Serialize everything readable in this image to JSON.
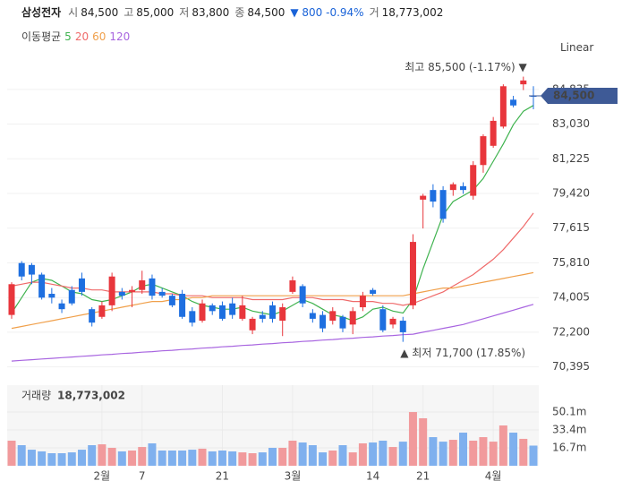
{
  "quote": {
    "name": "삼성전자",
    "fields": [
      {
        "label": "시",
        "value": "84,500"
      },
      {
        "label": "고",
        "value": "85,000"
      },
      {
        "label": "저",
        "value": "83,800"
      },
      {
        "label": "종",
        "value": "84,500"
      }
    ],
    "change": "▼ 800 -0.94%",
    "volume_label": "거",
    "volume": "18,773,002"
  },
  "chart_data": [
    {
      "type": "candlestick",
      "scale": "Linear",
      "legend_title": "이동평균",
      "categories": [
        null,
        null,
        null,
        null,
        null,
        null,
        null,
        null,
        null,
        "2월",
        null,
        null,
        null,
        "7",
        null,
        null,
        null,
        null,
        null,
        null,
        null,
        "21",
        null,
        null,
        null,
        null,
        null,
        null,
        "3월",
        null,
        null,
        null,
        null,
        null,
        null,
        null,
        "14",
        null,
        null,
        null,
        null,
        "21",
        null,
        null,
        null,
        null,
        null,
        null,
        "4월",
        null,
        null,
        null,
        null
      ],
      "open": [
        73100,
        75800,
        75700,
        75200,
        74200,
        73700,
        74400,
        75000,
        73400,
        73000,
        73600,
        74300,
        74300,
        74400,
        75000,
        74300,
        74100,
        74200,
        73300,
        72800,
        73600,
        73600,
        73700,
        72900,
        72300,
        73100,
        73600,
        72800,
        74300,
        74600,
        73200,
        73100,
        72800,
        73000,
        72600,
        73500,
        74400,
        73400,
        72600,
        72800,
        73600,
        79100,
        79600,
        79600,
        79600,
        79800,
        79300,
        80900,
        81900,
        82900,
        84300,
        85100,
        84500
      ],
      "high": [
        74800,
        75900,
        75800,
        75300,
        74500,
        73900,
        74600,
        75300,
        73500,
        73800,
        75300,
        74500,
        74600,
        75400,
        75200,
        74500,
        74200,
        74400,
        73500,
        73900,
        73700,
        73800,
        74000,
        74100,
        73000,
        73300,
        73800,
        73700,
        75100,
        74700,
        73400,
        73300,
        73500,
        73100,
        73500,
        74300,
        74500,
        73600,
        73000,
        73000,
        77300,
        79400,
        79900,
        79800,
        80000,
        80000,
        81100,
        82500,
        83400,
        85100,
        84500,
        85500,
        85000
      ],
      "low": [
        72900,
        74900,
        74700,
        73900,
        73700,
        73200,
        73600,
        74100,
        72500,
        72900,
        73300,
        73900,
        73500,
        74200,
        73900,
        74000,
        73500,
        72900,
        72500,
        72700,
        73100,
        72800,
        72900,
        72800,
        72100,
        72700,
        72700,
        72000,
        74200,
        73500,
        72700,
        72200,
        72600,
        72200,
        72100,
        73300,
        74100,
        72200,
        72400,
        71700,
        73400,
        77600,
        78700,
        77900,
        79300,
        79400,
        79100,
        80500,
        81800,
        82800,
        83900,
        84800,
        83800
      ],
      "close": [
        74700,
        75100,
        75200,
        74000,
        74000,
        73400,
        73700,
        74300,
        72700,
        73600,
        75100,
        74100,
        74400,
        74900,
        74100,
        74100,
        73600,
        73000,
        72700,
        73700,
        73300,
        72900,
        73100,
        73600,
        72900,
        72900,
        72900,
        73500,
        74900,
        73700,
        72900,
        72400,
        73300,
        72400,
        73300,
        74100,
        74200,
        72300,
        72900,
        72200,
        76900,
        79300,
        79000,
        78100,
        79900,
        79600,
        80900,
        82400,
        83200,
        85000,
        84000,
        85300,
        84500
      ],
      "up_color": "#e8363c",
      "down_color": "#1e6fe0",
      "moving_averages": [
        {
          "name": "5",
          "color": "#3fb34f",
          "values": [
            73200,
            74000,
            74800,
            75000,
            74900,
            74600,
            74300,
            74200,
            73900,
            73800,
            73900,
            74100,
            74300,
            74600,
            74700,
            74500,
            74300,
            74100,
            73800,
            73600,
            73500,
            73400,
            73400,
            73500,
            73300,
            73200,
            73100,
            73300,
            73600,
            73900,
            73700,
            73400,
            73100,
            73000,
            72800,
            73000,
            73400,
            73500,
            73300,
            73200,
            73900,
            75500,
            76900,
            78300,
            79000,
            79300,
            79600,
            80200,
            81100,
            82000,
            83000,
            83700,
            84000
          ]
        },
        {
          "name": "20",
          "color": "#ef6a6a",
          "values": [
            74600,
            74700,
            74800,
            74800,
            74700,
            74600,
            74500,
            74500,
            74400,
            74400,
            74300,
            74300,
            74300,
            74300,
            74300,
            74200,
            74200,
            74100,
            74100,
            74100,
            74000,
            74000,
            74000,
            74000,
            73900,
            73900,
            73900,
            73900,
            74000,
            74000,
            74000,
            73900,
            73900,
            73900,
            73800,
            73800,
            73800,
            73700,
            73700,
            73600,
            73700,
            73900,
            74100,
            74300,
            74600,
            74900,
            75200,
            75600,
            76000,
            76500,
            77100,
            77700,
            78400
          ]
        },
        {
          "name": "60",
          "color": "#f0a04b",
          "values": [
            72400,
            72500,
            72600,
            72700,
            72800,
            72900,
            73000,
            73100,
            73200,
            73300,
            73400,
            73500,
            73600,
            73700,
            73800,
            73800,
            73900,
            73900,
            74000,
            74000,
            74100,
            74100,
            74100,
            74100,
            74100,
            74100,
            74100,
            74100,
            74100,
            74100,
            74100,
            74100,
            74100,
            74100,
            74100,
            74100,
            74100,
            74100,
            74100,
            74100,
            74200,
            74300,
            74400,
            74500,
            74500,
            74600,
            74700,
            74800,
            74900,
            75000,
            75100,
            75200,
            75300
          ]
        },
        {
          "name": "120",
          "color": "#a865e0",
          "values": [
            70700,
            70740,
            70770,
            70810,
            70840,
            70880,
            70910,
            70950,
            70980,
            71020,
            71050,
            71090,
            71120,
            71160,
            71190,
            71230,
            71260,
            71300,
            71330,
            71370,
            71400,
            71440,
            71470,
            71510,
            71540,
            71580,
            71610,
            71650,
            71680,
            71720,
            71750,
            71790,
            71820,
            71860,
            71890,
            71930,
            71960,
            72000,
            72030,
            72070,
            72100,
            72200,
            72300,
            72400,
            72500,
            72600,
            72750,
            72900,
            73050,
            73200,
            73350,
            73500,
            73650
          ]
        }
      ],
      "ylim": [
        69680,
        87530
      ],
      "yticks": [
        {
          "value": 70395,
          "label": "70,395"
        },
        {
          "value": 72200,
          "label": "72,200"
        },
        {
          "value": 74005,
          "label": "74,005"
        },
        {
          "value": 75810,
          "label": "75,810"
        },
        {
          "value": 77615,
          "label": "77,615"
        },
        {
          "value": 79420,
          "label": "79,420"
        },
        {
          "value": 81225,
          "label": "81,225"
        },
        {
          "value": 83030,
          "label": "83,030"
        },
        {
          "value": 84835,
          "label": "84,835"
        }
      ],
      "grid": true,
      "last_price": {
        "value": 84500,
        "label": "84,500"
      },
      "max_annotation": "최고 85,500 (-1.17%) ▼",
      "min_annotation": "▲ 최저 71,700 (17.85%)"
    },
    {
      "type": "bar",
      "title": "거래량",
      "subtitle": "18,773,002",
      "values": [
        23.4,
        19.2,
        15.0,
        13.4,
        11.7,
        11.7,
        12.5,
        15.0,
        19.2,
        20.0,
        16.7,
        13.4,
        14.2,
        17.5,
        20.9,
        14.2,
        14.2,
        14.2,
        15.0,
        15.9,
        13.4,
        14.2,
        13.4,
        12.5,
        11.7,
        12.5,
        16.7,
        16.7,
        23.4,
        21.7,
        19.2,
        12.5,
        14.2,
        19.2,
        12.5,
        20.9,
        21.7,
        23.4,
        17.5,
        22.5,
        50.1,
        44.3,
        26.7,
        22.5,
        24.2,
        30.9,
        23.4,
        26.7,
        22.5,
        37.6,
        30.9,
        25.1,
        18.8
      ],
      "up_color": "#f19a9c",
      "down_color": "#7fb0ee",
      "ylim": [
        0,
        75.2
      ],
      "yticks": [
        {
          "value": 16.7,
          "label": "16.7m"
        },
        {
          "value": 33.4,
          "label": "33.4m"
        },
        {
          "value": 50.1,
          "label": "50.1m"
        }
      ]
    }
  ]
}
